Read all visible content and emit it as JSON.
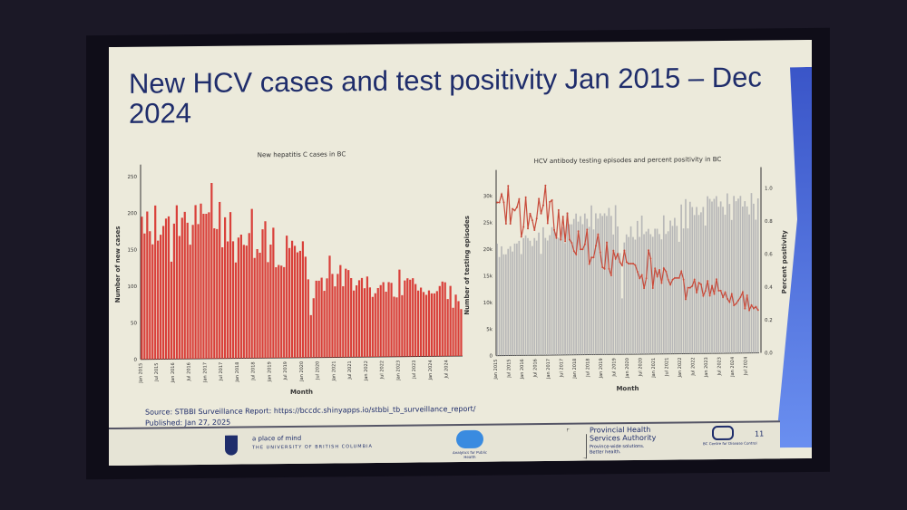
{
  "slide": {
    "title": "New HCV cases and test positivity Jan 2015 – Dec 2024",
    "source": "Source: STBBI Surveillance Report: https://bccdc.shinyapps.io/stbbi_tb_surveillance_report/",
    "published": "Published: Jan 27, 2025",
    "page_number": "11",
    "footer": {
      "ubc_tagline": "a place of mind",
      "ubc_name": "THE UNIVERSITY OF BRITISH COLUMBIA",
      "analytics": "Analytics for Public Health",
      "phsa_name": "Provincial Health Services Authority",
      "phsa_tagline": "Province-wide solutions. Better health.",
      "bccdc": "BC Centre for Disease Control"
    }
  },
  "chart_data": [
    {
      "type": "bar",
      "title": "New hepatitis C cases in BC",
      "xlabel": "Month",
      "ylabel": "Number of new cases",
      "ylim": [
        0,
        260
      ],
      "yticks": [
        0,
        50,
        100,
        150,
        200,
        250
      ],
      "color": "#d9403a",
      "x_start": "Jan 2015",
      "x_end": "Dec 2024",
      "xticks": [
        "Jan 2015",
        "Jul 2015",
        "Jan 2016",
        "Jul 2016",
        "Jan 2017",
        "Jul 2017",
        "Jan 2018",
        "Jul 2018",
        "Jan 2019",
        "Jul 2019",
        "Jan 2020",
        "Jul 2020",
        "Jan 2021",
        "Jul 2021",
        "Jan 2022",
        "Jul 2022",
        "Jan 2023",
        "Jul 2023",
        "Jan 2024",
        "Jul 2024"
      ],
      "values": [
        195,
        172,
        202,
        175,
        157,
        210,
        162,
        170,
        182,
        192,
        195,
        133,
        185,
        210,
        168,
        193,
        201,
        186,
        156,
        183,
        210,
        184,
        212,
        198,
        198,
        200,
        240,
        178,
        177,
        214,
        152,
        193,
        160,
        200,
        160,
        131,
        165,
        169,
        155,
        154,
        171,
        204,
        137,
        149,
        144,
        176,
        187,
        131,
        155,
        178,
        124,
        127,
        126,
        124,
        167,
        150,
        160,
        153,
        144,
        146,
        159,
        138,
        107,
        58,
        81,
        105,
        105,
        109,
        91,
        108,
        139,
        114,
        97,
        114,
        126,
        97,
        121,
        119,
        108,
        91,
        98,
        105,
        108,
        94,
        110,
        95,
        82,
        87,
        94,
        98,
        102,
        89,
        102,
        101,
        82,
        81,
        119,
        84,
        104,
        107,
        105,
        107,
        99,
        90,
        94,
        88,
        84,
        90,
        86,
        86,
        89,
        96,
        102,
        101,
        78,
        96,
        66,
        84,
        75,
        64
      ]
    },
    {
      "type": "bar+line",
      "title": "HCV antibody testing episodes and percent positivity in BC",
      "xlabel": "Month",
      "ylabel": "Number of testing episodes",
      "ylabel_right": "Percent positivity",
      "ylim": [
        0,
        34000
      ],
      "ylim_right": [
        0,
        1.1
      ],
      "yticks": [
        "0",
        "5k",
        "10k",
        "15k",
        "20k",
        "25k",
        "30k"
      ],
      "yticks_right": [
        "0.0",
        "0.2",
        "0.4",
        "0.6",
        "0.8",
        "1.0"
      ],
      "bar_color": "#b8b8b8",
      "line_color": "#c84a3a",
      "xticks": [
        "Jan 2015",
        "Jul 2015",
        "Jan 2016",
        "Jul 2016",
        "Jan 2017",
        "Jul 2017",
        "Jan 2018",
        "Jul 2018",
        "Jan 2019",
        "Jul 2019",
        "Jan 2020",
        "Jul 2020",
        "Jan 2021",
        "Jul 2021",
        "Jan 2022",
        "Jul 2022",
        "Jan 2023",
        "Jul 2023",
        "Jan 2024",
        "Jul 2024"
      ],
      "series": [
        {
          "name": "Number of testing episodes",
          "values": [
            21000,
            18500,
            20500,
            19000,
            19000,
            20000,
            20500,
            19500,
            21000,
            21000,
            21500,
            19000,
            22000,
            22500,
            22000,
            21500,
            20500,
            22000,
            21500,
            23000,
            19000,
            24000,
            22000,
            21500,
            22500,
            24000,
            23500,
            23000,
            22000,
            22500,
            24000,
            21000,
            26500,
            24500,
            24500,
            25500,
            26500,
            25000,
            26000,
            24500,
            26500,
            25500,
            24000,
            28000,
            23500,
            26500,
            25500,
            26500,
            26000,
            26500,
            26000,
            27500,
            26000,
            22500,
            28000,
            24000,
            19000,
            10500,
            21000,
            22500,
            22000,
            24000,
            22000,
            21500,
            25000,
            22000,
            26000,
            22500,
            23000,
            23500,
            22500,
            22000,
            23500,
            23500,
            22500,
            21500,
            26000,
            22500,
            23000,
            25000,
            24000,
            25500,
            24000,
            21000,
            28000,
            23500,
            29000,
            23500,
            28500,
            27500,
            26000,
            27500,
            26000,
            26500,
            27500,
            24000,
            29500,
            29000,
            28500,
            29000,
            29500,
            27500,
            28500,
            27500,
            26000,
            30000,
            28000,
            25000,
            29500,
            28500,
            29000,
            29500,
            27500,
            28500,
            27500,
            26000,
            30000,
            28000,
            25000,
            29000
          ]
        },
        {
          "name": "Percent positivity",
          "values": [
            0.93,
            0.93,
            0.98,
            0.93,
            0.8,
            1.03,
            0.8,
            0.89,
            0.88,
            0.9,
            0.95,
            0.72,
            0.78,
            0.96,
            0.77,
            0.86,
            0.82,
            0.76,
            0.83,
            0.95,
            0.86,
            0.91,
            1.03,
            0.8,
            0.93,
            0.94,
            0.76,
            0.71,
            0.88,
            0.7,
            0.84,
            0.69,
            0.86,
            0.7,
            0.68,
            0.63,
            0.61,
            0.75,
            0.64,
            0.64,
            0.67,
            0.76,
            0.55,
            0.59,
            0.59,
            0.66,
            0.73,
            0.62,
            0.53,
            0.52,
            0.68,
            0.52,
            0.48,
            0.63,
            0.58,
            0.61,
            0.56,
            0.54,
            0.63,
            0.56,
            0.55,
            0.55,
            0.55,
            0.54,
            0.5,
            0.46,
            0.48,
            0.4,
            0.46,
            0.63,
            0.58,
            0.4,
            0.52,
            0.47,
            0.51,
            0.43,
            0.52,
            0.5,
            0.45,
            0.42,
            0.45,
            0.46,
            0.46,
            0.46,
            0.5,
            0.45,
            0.33,
            0.4,
            0.4,
            0.41,
            0.45,
            0.37,
            0.43,
            0.42,
            0.35,
            0.38,
            0.44,
            0.35,
            0.41,
            0.36,
            0.45,
            0.38,
            0.38,
            0.34,
            0.37,
            0.33,
            0.31,
            0.36,
            0.29,
            0.3,
            0.32,
            0.34,
            0.37,
            0.27,
            0.35,
            0.26,
            0.29,
            0.27,
            0.28,
            0.26
          ]
        }
      ]
    }
  ]
}
